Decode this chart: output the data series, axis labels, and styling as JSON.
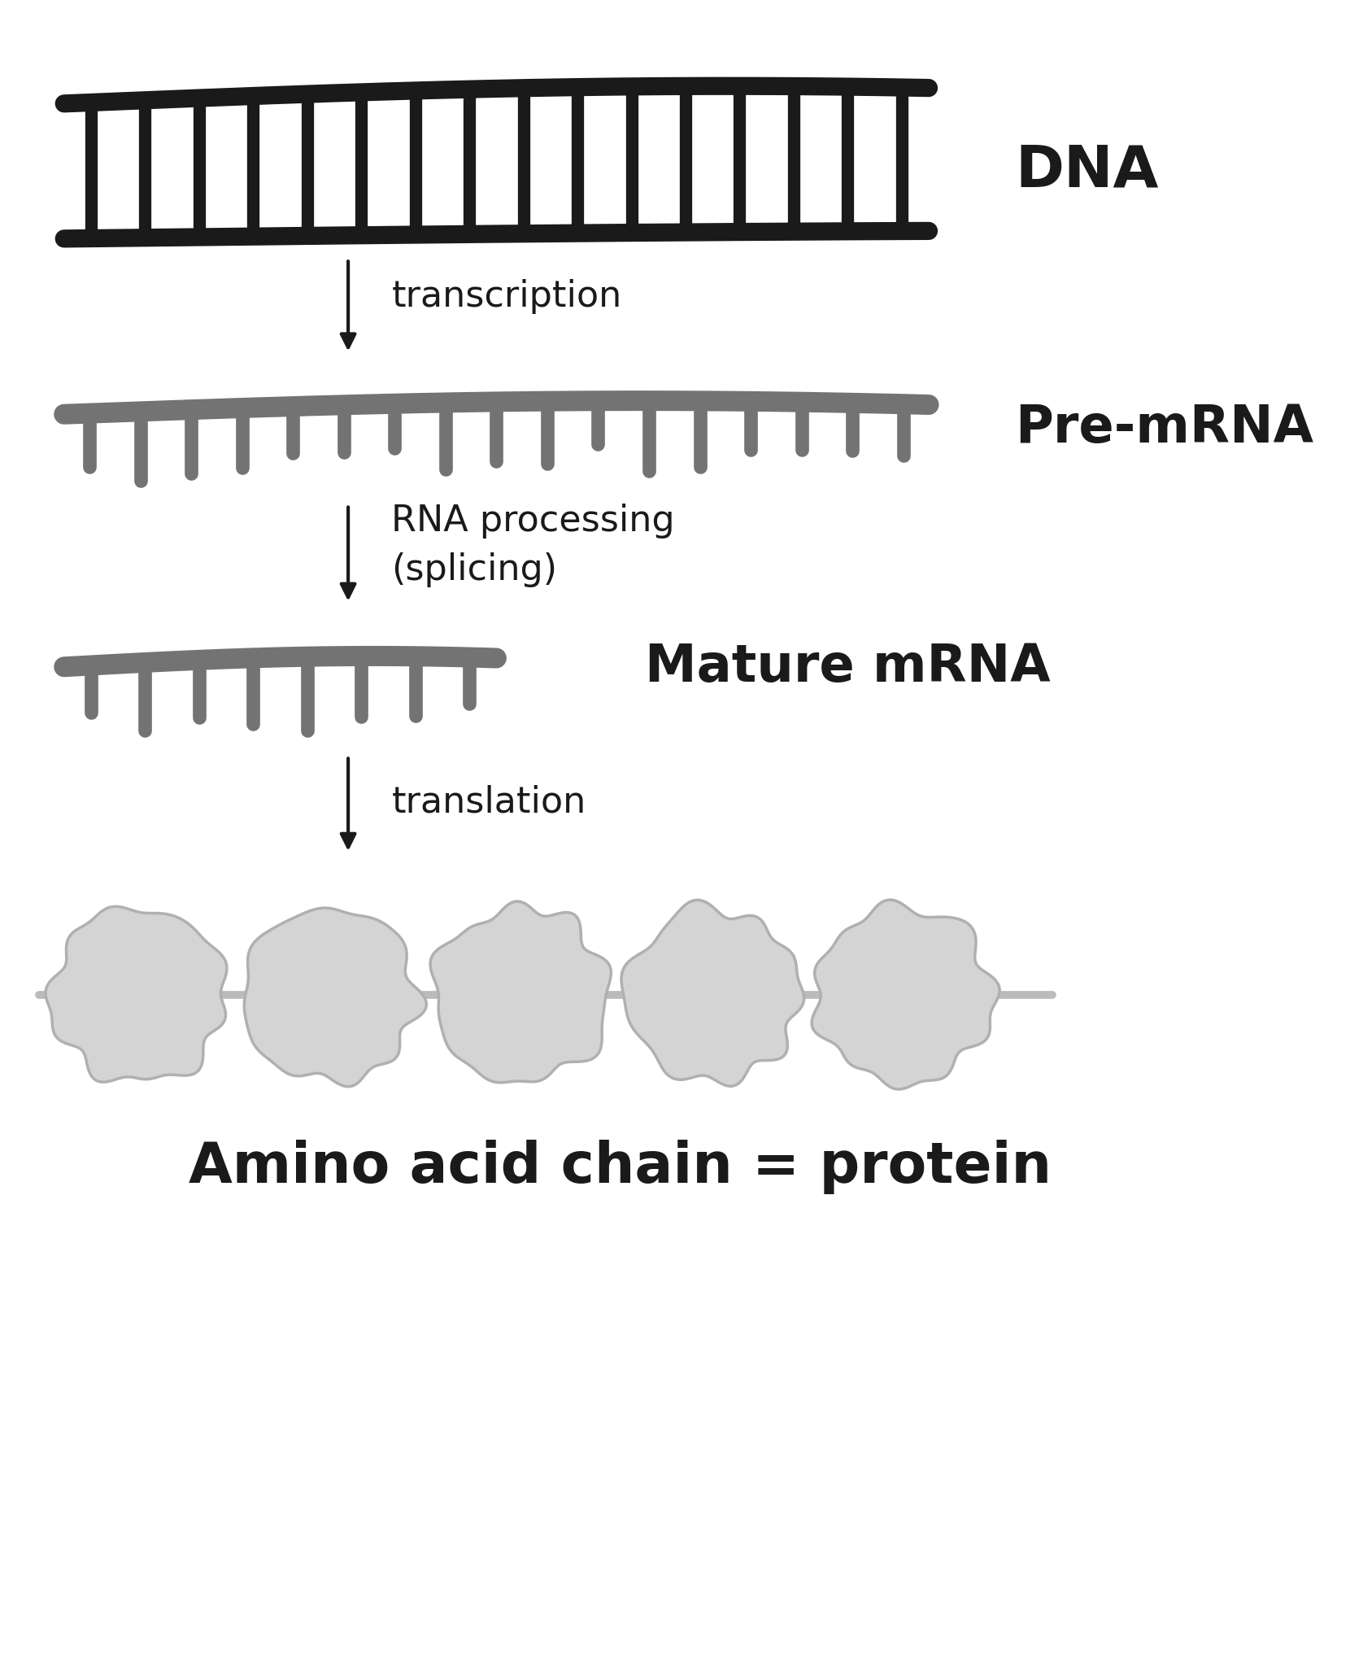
{
  "bg_color": "#ffffff",
  "dna_color": "#1a1a1a",
  "rna_color": "#737373",
  "arrow_color": "#1a1a1a",
  "text_color": "#1a1a1a",
  "label_dna": "DNA",
  "label_premrna": "Pre-mRNA",
  "label_maturemrna": "Mature mRNA",
  "label_protein": "Amino acid chain = protein",
  "label_transcription": "transcription",
  "label_rna_processing": "RNA processing\n(splicing)",
  "label_translation": "translation"
}
